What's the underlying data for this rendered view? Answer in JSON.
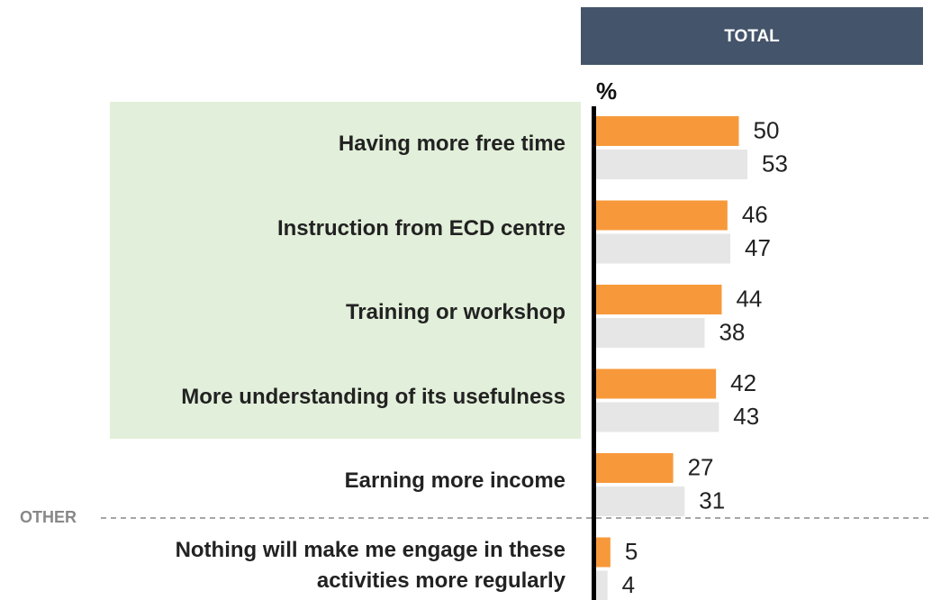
{
  "chart_data": {
    "type": "bar",
    "orientation": "horizontal",
    "header": "TOTAL",
    "unit": "%",
    "separator_label": "OTHER",
    "categories": [
      "Having more free time",
      "Instruction from ECD centre",
      "Training or workshop",
      "More understanding of its usefulness",
      "Earning more income",
      "Nothing will make me engage in these activities more regularly"
    ],
    "series": [
      {
        "color": "#f7993a",
        "values": [
          50,
          46,
          44,
          42,
          27,
          5
        ]
      },
      {
        "color": "#e6e6e6",
        "values": [
          53,
          47,
          38,
          43,
          31,
          4
        ]
      }
    ],
    "xlim": [
      0,
      100
    ]
  }
}
